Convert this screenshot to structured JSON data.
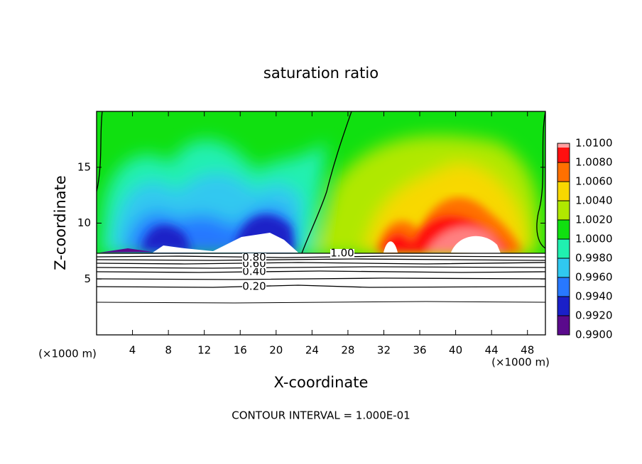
{
  "chart_data": {
    "type": "contour",
    "title": "saturation ratio",
    "xlabel": "X-coordinate",
    "ylabel": "Z-coordinate",
    "x_unit": "(×1000 m)",
    "footer": "CONTOUR INTERVAL = 1.000E-01",
    "xlim": [
      0,
      50
    ],
    "xticks": [
      4,
      8,
      12,
      16,
      20,
      24,
      28,
      32,
      36,
      40,
      44,
      48
    ],
    "ylim": [
      0,
      20
    ],
    "yticks": [
      5,
      10,
      15
    ],
    "contour_levels": [
      {
        "value": 0.2,
        "label": "0.20"
      },
      {
        "value": 0.4,
        "label": "0.40"
      },
      {
        "value": 0.6,
        "label": "0.60"
      },
      {
        "value": 0.8,
        "label": "0.80"
      },
      {
        "value": 1.0,
        "label": "1.00"
      }
    ],
    "colorbar": {
      "lim": [
        0.99,
        1.01
      ],
      "ticks": [
        {
          "value": 0.99,
          "label": "0.9900"
        },
        {
          "value": 0.992,
          "label": "0.9920"
        },
        {
          "value": 0.994,
          "label": "0.9940"
        },
        {
          "value": 0.996,
          "label": "0.9960"
        },
        {
          "value": 0.998,
          "label": "0.9980"
        },
        {
          "value": 1.0,
          "label": "1.0000"
        },
        {
          "value": 1.002,
          "label": "1.0020"
        },
        {
          "value": 1.004,
          "label": "1.0040"
        },
        {
          "value": 1.006,
          "label": "1.0060"
        },
        {
          "value": 1.008,
          "label": "1.0080"
        },
        {
          "value": 1.01,
          "label": "1.0100"
        }
      ],
      "colors": [
        "#5a0a8c",
        "#1a20c8",
        "#2878ff",
        "#30c8f0",
        "#20f0b0",
        "#10e010",
        "#b0e800",
        "#f8d800",
        "#ff7000",
        "#ff1010"
      ]
    }
  }
}
